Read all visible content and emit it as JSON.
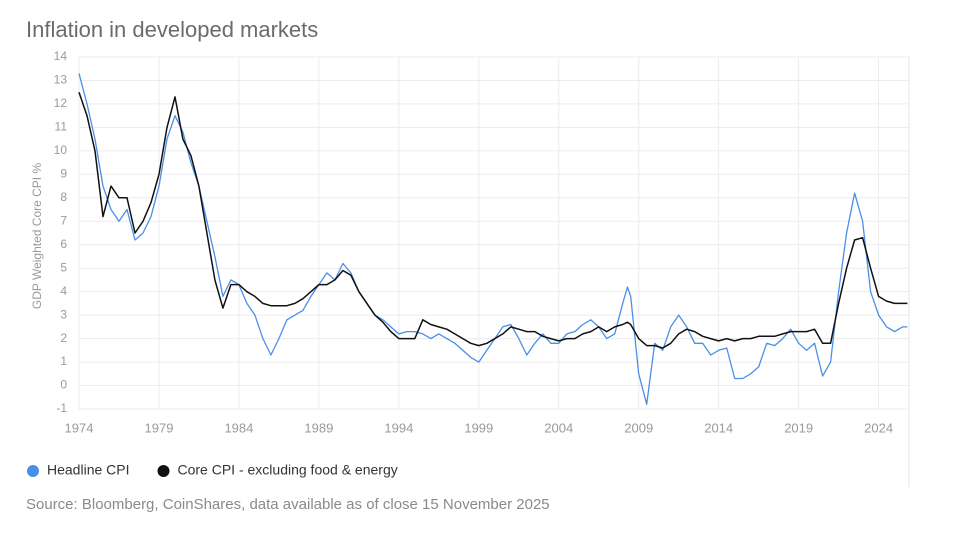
{
  "chart_data": {
    "type": "line",
    "title": "Inflation in developed markets",
    "y_label": "GDP Weighted Core CPI %",
    "source": "Source: Bloomberg, CoinShares, data available as of close 15 November 2025",
    "x": [
      1974,
      1974.5,
      1975,
      1975.5,
      1976,
      1976.5,
      1977,
      1977.5,
      1978,
      1978.5,
      1979,
      1979.5,
      1980,
      1980.5,
      1981,
      1981.5,
      1982,
      1982.5,
      1983,
      1983.5,
      1984,
      1984.5,
      1985,
      1985.5,
      1986,
      1986.5,
      1987,
      1987.5,
      1988,
      1988.5,
      1989,
      1989.5,
      1990,
      1990.5,
      1991,
      1991.5,
      1992,
      1992.5,
      1993,
      1993.5,
      1994,
      1994.5,
      1995,
      1995.5,
      1996,
      1996.5,
      1997,
      1997.5,
      1998,
      1998.5,
      1999,
      1999.5,
      2000,
      2000.5,
      2001,
      2001.5,
      2002,
      2002.5,
      2003,
      2003.5,
      2004,
      2004.5,
      2005,
      2005.5,
      2006,
      2006.5,
      2007,
      2007.5,
      2008,
      2008.3,
      2008.5,
      2009,
      2009.5,
      2010,
      2010.5,
      2011,
      2011.5,
      2012,
      2012.5,
      2013,
      2013.5,
      2014,
      2014.5,
      2015,
      2015.5,
      2016,
      2016.5,
      2017,
      2017.5,
      2018,
      2018.5,
      2019,
      2019.5,
      2020,
      2020.5,
      2021,
      2021.5,
      2022,
      2022.5,
      2023,
      2023.5,
      2024,
      2024.5,
      2025,
      2025.5,
      2025.8
    ],
    "series": [
      {
        "name": "Headline CPI",
        "color": "#4a8fe7",
        "values": [
          13.3,
          12.0,
          10.5,
          8.5,
          7.5,
          7.0,
          7.5,
          6.2,
          6.5,
          7.2,
          8.5,
          10.5,
          11.5,
          10.8,
          9.5,
          8.5,
          7.0,
          5.5,
          3.8,
          4.5,
          4.3,
          3.5,
          3.0,
          2.0,
          1.3,
          2.0,
          2.8,
          3.0,
          3.2,
          3.8,
          4.3,
          4.8,
          4.5,
          5.2,
          4.8,
          4.0,
          3.5,
          3.0,
          2.8,
          2.5,
          2.2,
          2.3,
          2.3,
          2.2,
          2.0,
          2.2,
          2.0,
          1.8,
          1.5,
          1.2,
          1.0,
          1.5,
          2.0,
          2.5,
          2.6,
          2.0,
          1.3,
          1.8,
          2.2,
          1.8,
          1.8,
          2.2,
          2.3,
          2.6,
          2.8,
          2.5,
          2.0,
          2.2,
          3.5,
          4.2,
          3.8,
          0.5,
          -0.8,
          1.8,
          1.5,
          2.5,
          3.0,
          2.5,
          1.8,
          1.8,
          1.3,
          1.5,
          1.6,
          0.3,
          0.3,
          0.5,
          0.8,
          1.8,
          1.7,
          2.0,
          2.4,
          1.8,
          1.5,
          1.8,
          0.4,
          1.0,
          4.0,
          6.5,
          8.2,
          7.0,
          4.0,
          3.0,
          2.5,
          2.3,
          2.5,
          2.5
        ]
      },
      {
        "name": "Core CPI - excluding food & energy",
        "color": "#111111",
        "values": [
          12.5,
          11.5,
          10.0,
          7.2,
          8.5,
          8.0,
          8.0,
          6.5,
          7.0,
          7.8,
          9.0,
          11.0,
          12.3,
          10.5,
          9.8,
          8.5,
          6.5,
          4.5,
          3.3,
          4.3,
          4.3,
          4.0,
          3.8,
          3.5,
          3.4,
          3.4,
          3.4,
          3.5,
          3.7,
          4.0,
          4.3,
          4.3,
          4.5,
          4.9,
          4.7,
          4.0,
          3.5,
          3.0,
          2.7,
          2.3,
          2.0,
          2.0,
          2.0,
          2.8,
          2.6,
          2.5,
          2.4,
          2.2,
          2.0,
          1.8,
          1.7,
          1.8,
          2.0,
          2.2,
          2.5,
          2.4,
          2.3,
          2.3,
          2.1,
          2.0,
          1.9,
          2.0,
          2.0,
          2.2,
          2.3,
          2.5,
          2.3,
          2.5,
          2.6,
          2.7,
          2.6,
          2.0,
          1.7,
          1.7,
          1.6,
          1.8,
          2.2,
          2.4,
          2.3,
          2.1,
          2.0,
          1.9,
          2.0,
          1.9,
          2.0,
          2.0,
          2.1,
          2.1,
          2.1,
          2.2,
          2.3,
          2.3,
          2.3,
          2.4,
          1.8,
          1.8,
          3.5,
          5.0,
          6.2,
          6.3,
          5.0,
          3.8,
          3.6,
          3.5,
          3.5,
          3.5
        ]
      }
    ],
    "xlim": [
      1974,
      2025.9
    ],
    "xticks": [
      1974,
      1979,
      1984,
      1989,
      1994,
      1999,
      2004,
      2009,
      2014,
      2019,
      2024
    ],
    "ylim": [
      -1,
      14
    ],
    "yticks": [
      -1,
      0,
      1,
      2,
      3,
      4,
      5,
      6,
      7,
      8,
      9,
      10,
      11,
      12,
      13,
      14
    ],
    "grid": true,
    "legend": "bottom-left"
  }
}
